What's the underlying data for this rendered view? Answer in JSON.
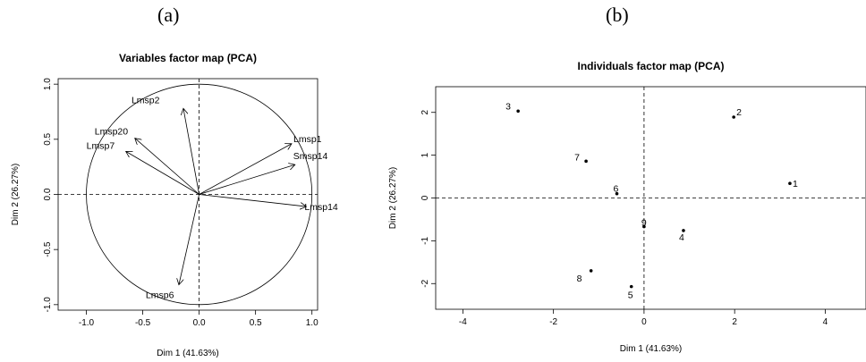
{
  "panel_labels": [
    "(a)",
    "(b)"
  ],
  "chart_data": [
    {
      "type": "scatter",
      "variant": "pca-variables-correlation-circle",
      "title": "Variables factor map (PCA)",
      "xlabel": "Dim 1 (41.63%)",
      "ylabel": "Dim 2 (26.27%)",
      "xlim": [
        -1.25,
        1.05
      ],
      "ylim": [
        -1.05,
        1.05
      ],
      "xticks": [
        -1.0,
        -0.5,
        0.0,
        0.5,
        1.0
      ],
      "xtick_labels": [
        "-1.0",
        "-0.5",
        "0.0",
        "0.5",
        "1.0"
      ],
      "yticks": [
        -1.0,
        -0.5,
        0.0,
        0.5,
        1.0
      ],
      "ytick_labels": [
        "-1.0",
        "-0.5",
        "0.0",
        "0.5",
        "1.0"
      ],
      "unit_circle": true,
      "reference_lines": [
        0,
        0
      ],
      "arrows": [
        {
          "name": "Lmsp2",
          "x": -0.14,
          "y": 0.78
        },
        {
          "name": "Lmsp20",
          "x": -0.57,
          "y": 0.51
        },
        {
          "name": "Lmsp7",
          "x": -0.65,
          "y": 0.39
        },
        {
          "name": "Lmsp1",
          "x": 0.82,
          "y": 0.46
        },
        {
          "name": "Smsp14",
          "x": 0.85,
          "y": 0.27
        },
        {
          "name": "Lmsp14",
          "x": 0.95,
          "y": -0.11
        },
        {
          "name": "Lmsp6",
          "x": -0.18,
          "y": -0.82
        }
      ]
    },
    {
      "type": "scatter",
      "variant": "pca-individuals",
      "title": "Individuals factor map (PCA)",
      "xlabel": "Dim 1 (41.63%)",
      "ylabel": "Dim 2 (26.27%)",
      "xlim": [
        -4.6,
        4.9
      ],
      "ylim": [
        -2.6,
        2.6
      ],
      "xticks": [
        -4,
        -2,
        0,
        2,
        4
      ],
      "xtick_labels": [
        "-4",
        "-2",
        "0",
        "2",
        "4"
      ],
      "yticks": [
        -2,
        -1,
        0,
        1,
        2
      ],
      "ytick_labels": [
        "-2",
        "-1",
        "0",
        "1",
        "2"
      ],
      "reference_lines": [
        0,
        0
      ],
      "points": [
        {
          "label": "1",
          "x": 3.22,
          "y": 0.34
        },
        {
          "label": "2",
          "x": 1.98,
          "y": 1.89
        },
        {
          "label": "3",
          "x": -2.78,
          "y": 2.03
        },
        {
          "label": "4",
          "x": 0.87,
          "y": -0.76
        },
        {
          "label": "5",
          "x": -0.28,
          "y": -2.07
        },
        {
          "label": "6",
          "x": -0.6,
          "y": 0.1
        },
        {
          "label": "7",
          "x": -1.28,
          "y": 0.86
        },
        {
          "label": "8",
          "x": -1.17,
          "y": -1.7
        },
        {
          "label": "9",
          "x": 0.0,
          "y": -0.67
        }
      ]
    }
  ]
}
